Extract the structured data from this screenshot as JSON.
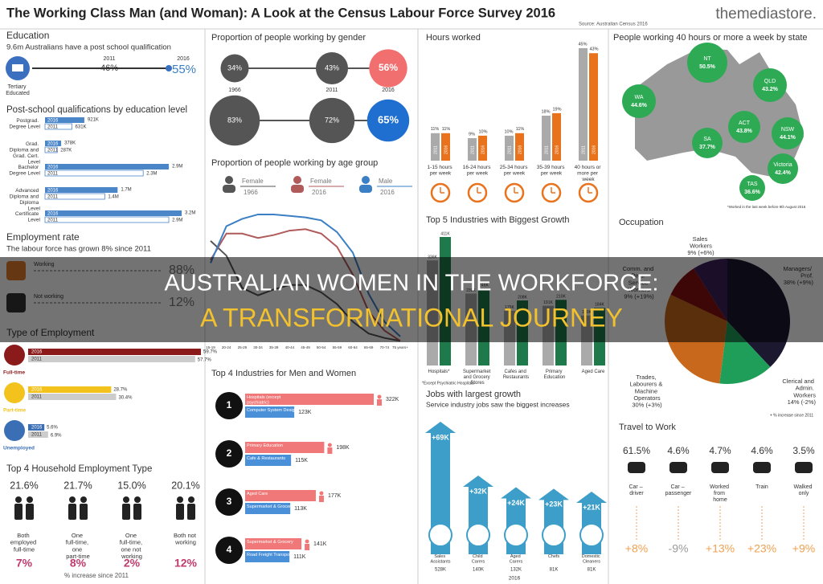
{
  "header": {
    "title": "The Working Class Man (and Woman): A Look at the Census Labour Force Survey 2016",
    "source": "Source: Australian Census 2016",
    "brand": "themediastore."
  },
  "overlay": {
    "line1": "AUSTRALIAN WOMEN IN THE WORKFORCE:",
    "line2": "A TRANSFORMATIONAL JOURNEY"
  },
  "education": {
    "title": "Education",
    "subtitle": "9.6m Australians have a post school qualification",
    "icon_label": "Tertiary Educated",
    "years": [
      "2011",
      "2016"
    ],
    "values": [
      "46%",
      "55%"
    ]
  },
  "qualifications": {
    "title": "Post-school qualifications by education level",
    "year_labels": [
      "2016",
      "2011"
    ],
    "rows": [
      {
        "label": "Postgrad. Degree Level",
        "v2016": "921K",
        "v2011": "631K"
      },
      {
        "label": "Grad. Diploma and Grad. Cert. Level",
        "v2016": "378K",
        "v2011": "287K"
      },
      {
        "label": "Bachelor Degree Level",
        "v2016": "2.9M",
        "v2011": "2.3M"
      },
      {
        "label": "Advanced Diploma and Diploma Level",
        "v2016": "1.7M",
        "v2011": "1.4M"
      },
      {
        "label": "Certificate Level",
        "v2016": "3.2M",
        "v2011": "2.9M"
      }
    ]
  },
  "employment_rate": {
    "title": "Employment rate",
    "subtitle": "The labour force has grown 8% since 2011",
    "rows": [
      {
        "label": "Working",
        "value": "88%"
      },
      {
        "label": "Not working",
        "value": "12%"
      }
    ]
  },
  "employment_type": {
    "title": "Type of Employment",
    "year_labels": [
      "2016",
      "2011"
    ],
    "rows": [
      {
        "label": "Full-time",
        "v2016": "59.7%",
        "v2011": "57.7%"
      },
      {
        "label": "Part-time",
        "v2016": "28.7%",
        "v2011": "30.4%"
      },
      {
        "label": "Unemployed",
        "v2016": "5.6%",
        "v2011": "6.9%"
      }
    ]
  },
  "household": {
    "title": "Top 4 Household Employment Type",
    "note": "% increase since 2011",
    "items": [
      {
        "pct": "21.6%",
        "label": "Both employed full-time",
        "change": "7%"
      },
      {
        "pct": "21.7%",
        "label": "One full-time, one part-time",
        "change": "8%"
      },
      {
        "pct": "15.0%",
        "label": "One full-time, one not working",
        "change": "2%"
      },
      {
        "pct": "20.1%",
        "label": "Both not working",
        "change": "12%"
      }
    ]
  },
  "gender": {
    "title": "Proportion of people working by gender",
    "years": [
      "1966",
      "2011",
      "2016"
    ],
    "female": [
      "34%",
      "43%",
      "56%"
    ],
    "male": [
      "83%",
      "72%",
      "65%"
    ]
  },
  "age_group": {
    "title": "Proportion of people working by age group",
    "categories": [
      "15-19",
      "20-24",
      "25-29",
      "30-34",
      "35-39",
      "40-44",
      "45-49",
      "50-54",
      "55-59",
      "60-64",
      "65-69",
      "70-74",
      "75 years+"
    ],
    "series": [
      {
        "label": "Female",
        "year": "1966",
        "color": "#555555",
        "values": [
          70,
          60,
          38,
          33,
          37,
          40,
          40,
          35,
          27,
          15,
          7,
          4,
          2
        ]
      },
      {
        "label": "Female",
        "year": "2016",
        "color": "#b05a5a",
        "values": [
          57,
          75,
          75,
          72,
          74,
          77,
          78,
          75,
          66,
          47,
          22,
          9,
          2
        ]
      },
      {
        "label": "Male",
        "year": "2016",
        "color": "#3b7fc4",
        "values": [
          55,
          80,
          85,
          88,
          88,
          87,
          86,
          84,
          76,
          62,
          34,
          15,
          5
        ]
      }
    ]
  },
  "top_industries": {
    "title": "Top 4 Industries for Men and Women",
    "items": [
      {
        "rank": "1",
        "female": "Hospitals (except psychiatric)",
        "female_value": "322K",
        "male": "Computer System Design",
        "male_value": "123K"
      },
      {
        "rank": "2",
        "female": "Primary Education",
        "female_value": "198K",
        "male": "Cafe & Restaurants",
        "male_value": "115K"
      },
      {
        "rank": "3",
        "female": "Aged Care",
        "female_value": "177K",
        "male": "Supermarket & Grocery",
        "male_value": "113K"
      },
      {
        "rank": "4",
        "female": "Supermarket & Grocery",
        "female_value": "141K",
        "male": "Road Freight Transport",
        "male_value": "111K"
      }
    ]
  },
  "hours": {
    "title": "Hours worked",
    "year_labels": [
      "2011",
      "2016"
    ],
    "groups": [
      {
        "label": "1-15 hours per week",
        "v2011": "11%",
        "v2016": "11%"
      },
      {
        "label": "16-24 hours per week",
        "v2011": "9%",
        "v2016": "10%"
      },
      {
        "label": "25-34 hours per week",
        "v2011": "10%",
        "v2016": "11%"
      },
      {
        "label": "35-39 hours per week",
        "v2011": "18%",
        "v2016": "19%"
      },
      {
        "label": "40 hours or more per week",
        "v2011": "45%",
        "v2016": "43%"
      }
    ]
  },
  "states": {
    "title": "People working 40 hours or more a week by state",
    "note": "*Worked in the last week before 9th August 2016",
    "items": [
      {
        "name": "NT",
        "value": "50.5%"
      },
      {
        "name": "QLD",
        "value": "43.2%"
      },
      {
        "name": "WA",
        "value": "44.6%"
      },
      {
        "name": "SA",
        "value": "37.7%"
      },
      {
        "name": "ACT",
        "value": "43.8%"
      },
      {
        "name": "NSW",
        "value": "44.1%"
      },
      {
        "name": "Victoria",
        "value": "42.4%"
      },
      {
        "name": "TAS",
        "value": "36.6%"
      }
    ]
  },
  "growth_industries": {
    "title": "Top 5 Industries with Biggest Growth",
    "note": "*Except Psychiatric Hospitals",
    "items": [
      {
        "label": "Hospitals*",
        "v2011": "336K",
        "v2016": "411K"
      },
      {
        "label": "Supermarket and Grocery Stores",
        "v2011": "230K",
        "v2016": "246K"
      },
      {
        "label": "Cafes and Restaurants",
        "v2011": "175K",
        "v2016": "208K"
      },
      {
        "label": "Primary Education",
        "v2011": "191K",
        "v2016": "210K"
      },
      {
        "label": "Aged Care",
        "v2011": "160K",
        "v2016": "184K"
      }
    ]
  },
  "jobs_growth": {
    "title": "Jobs with largest growth",
    "subtitle": "Service industry jobs saw the biggest increases",
    "year": "2016",
    "items": [
      {
        "increase": "+69K",
        "label": "Sales Assistants",
        "value": "528K"
      },
      {
        "increase": "+32K",
        "label": "Child Carers",
        "value": "140K"
      },
      {
        "increase": "+24K",
        "label": "Aged Carers",
        "value": "132K"
      },
      {
        "increase": "+23K",
        "label": "Chefs",
        "value": "81K"
      },
      {
        "increase": "+21K",
        "label": "Domestic Cleaners",
        "value": "81K"
      }
    ]
  },
  "occupation": {
    "title": "Occupation",
    "note": "+ % increase since 2011",
    "slices": [
      {
        "label": "Managers/ Prof.",
        "value": "38% (+9%)",
        "color": "#1c1830"
      },
      {
        "label": "Clerical and Admin. Workers",
        "value": "14% (-2%)",
        "color": "#1f9e5a"
      },
      {
        "label": "Trades, Labourers & Machine Operators",
        "value": "30% (+3%)",
        "color": "#c8681c"
      },
      {
        "label": "Comm. and Pers. Service Workers",
        "value": "9% (+19%)",
        "color": "#8b1010"
      },
      {
        "label": "Sales Workers",
        "value": "9% (+6%)",
        "color": "#3b1f5c"
      }
    ]
  },
  "travel": {
    "title": "Travel to Work",
    "items": [
      {
        "pct": "61.5%",
        "label": "Car – driver",
        "change": "+8%"
      },
      {
        "pct": "4.6%",
        "label": "Car – passenger",
        "change": "-9%"
      },
      {
        "pct": "4.7%",
        "label": "Worked from home",
        "change": "+13%"
      },
      {
        "pct": "4.6%",
        "label": "Train",
        "change": "+23%"
      },
      {
        "pct": "3.5%",
        "label": "Walked only",
        "change": "+9%"
      }
    ]
  }
}
